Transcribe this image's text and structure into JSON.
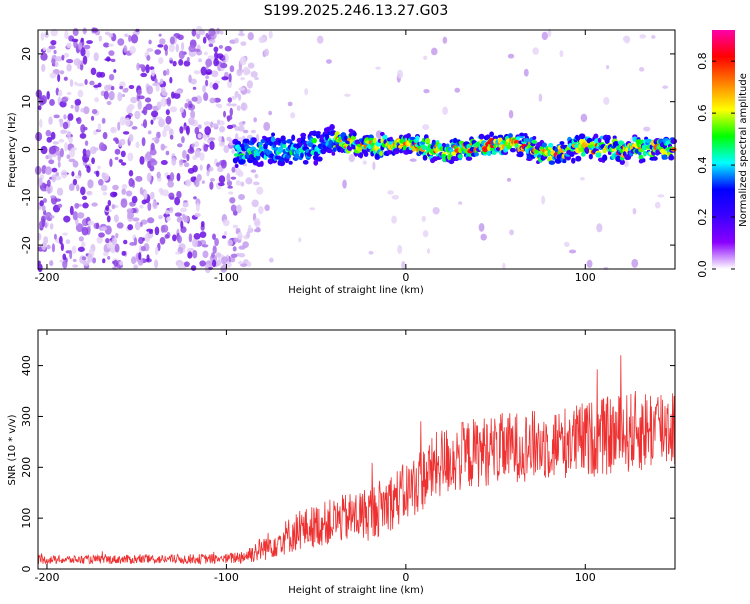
{
  "title": "S199.2025.246.13.27.G03",
  "chart_data": [
    {
      "type": "heatmap",
      "name": "spectrogram",
      "xlabel": "Height of straight line (km)",
      "ylabel": "Frequency (Hz)",
      "xlim": [
        -205,
        150
      ],
      "ylim": [
        -25,
        25
      ],
      "xticks": [
        -200,
        -100,
        0,
        100
      ],
      "yticks": [
        -20,
        -10,
        0,
        10,
        20
      ],
      "colorbar": {
        "label": "Normalized spectral amplitude",
        "range": [
          0.0,
          0.92
        ],
        "ticks": [
          0.0,
          0.2,
          0.4,
          0.6,
          0.8
        ],
        "colormap": [
          "#ffffff",
          "#8a00ff",
          "#3a00ff",
          "#0000ff",
          "#00ffff",
          "#00ff00",
          "#ffff00",
          "#ff8000",
          "#ff0000",
          "#ff00aa"
        ]
      },
      "center_line_x": [
        -85,
        -75,
        -60,
        -50,
        -40,
        -20,
        0,
        20,
        40,
        60,
        70,
        80,
        100,
        120,
        150
      ],
      "center_line_freq": [
        0.0,
        0.3,
        -0.5,
        0.8,
        2.0,
        0.5,
        1.2,
        -0.3,
        0.7,
        1.5,
        0.2,
        -1.0,
        0.8,
        0.0,
        0.3
      ]
    },
    {
      "type": "line",
      "name": "snr",
      "xlabel": "Height of straight line (km)",
      "ylabel": "SNR (10 * v/v)",
      "xlim": [
        -205,
        150
      ],
      "ylim": [
        0,
        470
      ],
      "xticks": [
        -200,
        -100,
        0,
        100
      ],
      "yticks": [
        0,
        100,
        200,
        300,
        400
      ],
      "color": "#ee3030",
      "trend_x": [
        -205,
        -100,
        -90,
        -80,
        -60,
        -40,
        -20,
        0,
        20,
        40,
        60,
        80,
        100,
        120,
        150
      ],
      "trend_mean": [
        18,
        20,
        25,
        40,
        75,
        95,
        110,
        150,
        210,
        230,
        240,
        245,
        255,
        265,
        285
      ],
      "trend_spread": [
        8,
        10,
        15,
        25,
        40,
        45,
        55,
        60,
        70,
        70,
        70,
        70,
        75,
        80,
        85
      ]
    }
  ]
}
